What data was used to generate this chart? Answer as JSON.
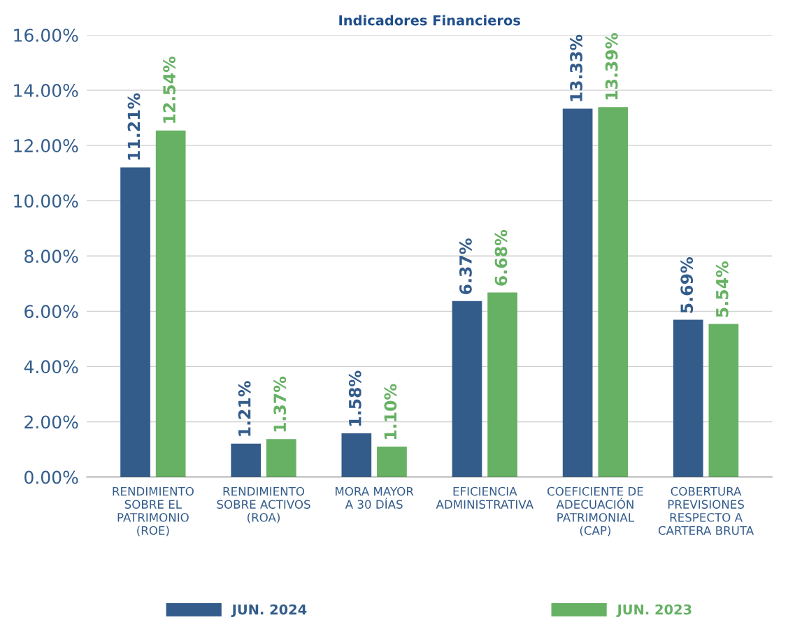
{
  "chart_data": {
    "type": "bar",
    "title": "Indicadores Financieros",
    "categories": [
      "RENDIMIENTO\nSOBRE EL\nPATRIMONIO\n(ROE)",
      "RENDIMIENTO\nSOBRE ACTIVOS\n(ROA)",
      "MORA MAYOR\nA 30 DÍAS",
      "EFICIENCIA\nADMINISTRATIVA",
      "COEFICIENTE DE\nADECUACIÓN\nPATRIMONIAL\n(CAP)",
      "COBERTURA\nPREVISIONES\nRESPECTO A\nCARTERA BRUTA"
    ],
    "series": [
      {
        "name": "JUN. 2024",
        "color": "#335c8b",
        "values": [
          11.21,
          1.21,
          1.58,
          6.37,
          13.33,
          5.69
        ],
        "value_labels": [
          "11.21%",
          "1.21%",
          "1.58%",
          "6.37%",
          "13.33%",
          "5.69%"
        ]
      },
      {
        "name": "JUN. 2023",
        "color": "#66b163",
        "values": [
          12.54,
          1.37,
          1.1,
          6.68,
          13.39,
          5.54
        ],
        "value_labels": [
          "12.54%",
          "1.37%",
          "1.10%",
          "6.68%",
          "13.39%",
          "5.54%"
        ]
      }
    ],
    "ylim": [
      0,
      16
    ],
    "yticks": [
      {
        "value": 0,
        "label": "0.00%"
      },
      {
        "value": 2,
        "label": "2.00%"
      },
      {
        "value": 4,
        "label": "4.00%"
      },
      {
        "value": 6,
        "label": "6.00%"
      },
      {
        "value": 8,
        "label": "8.00%"
      },
      {
        "value": 10,
        "label": "10.00%"
      },
      {
        "value": 12,
        "label": "12.00%"
      },
      {
        "value": 14,
        "label": "14.00%"
      },
      {
        "value": 16,
        "label": "16.00%"
      }
    ],
    "grid": "y",
    "legend": "bottom"
  }
}
